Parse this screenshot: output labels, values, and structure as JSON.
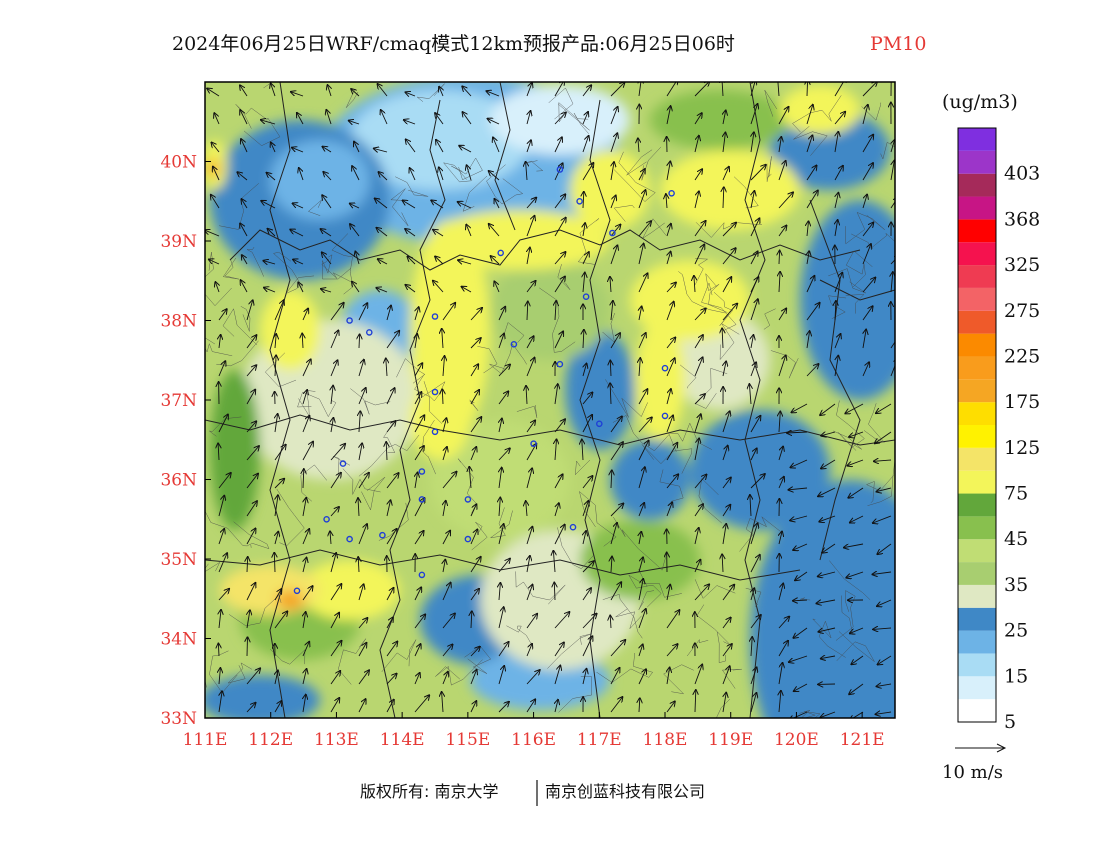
{
  "title": {
    "main": "2024年06月25日WRF/cmaq模式12km预报产品:06月25日06时",
    "pollutant": "PM10",
    "pollutant_color": "#e53935"
  },
  "map": {
    "longitude_range": [
      111,
      121.5
    ],
    "latitude_range": [
      33,
      41
    ],
    "lon_labels": [
      "111E",
      "112E",
      "113E",
      "114E",
      "115E",
      "116E",
      "117E",
      "118E",
      "119E",
      "120E",
      "121E"
    ],
    "lat_labels": [
      "33N",
      "34N",
      "35N",
      "36N",
      "37N",
      "38N",
      "39N",
      "40N"
    ],
    "label_color": "#e53935",
    "sites": [
      [
        116.4,
        39.9
      ],
      [
        117.2,
        39.1
      ],
      [
        116.7,
        39.5
      ],
      [
        115.5,
        38.85
      ],
      [
        114.5,
        38.05
      ],
      [
        115.7,
        37.7
      ],
      [
        113.2,
        38.0
      ],
      [
        113.5,
        37.85
      ],
      [
        114.5,
        37.1
      ],
      [
        114.5,
        36.6
      ],
      [
        114.3,
        36.1
      ],
      [
        113.1,
        36.2
      ],
      [
        112.85,
        35.5
      ],
      [
        113.2,
        35.25
      ],
      [
        113.7,
        35.3
      ],
      [
        114.3,
        35.75
      ],
      [
        115.0,
        35.75
      ],
      [
        115.0,
        35.25
      ],
      [
        116.0,
        36.45
      ],
      [
        116.4,
        37.45
      ],
      [
        116.8,
        38.3
      ],
      [
        118.0,
        37.4
      ],
      [
        118.0,
        36.8
      ],
      [
        117.0,
        36.7
      ],
      [
        116.6,
        35.4
      ],
      [
        114.3,
        34.8
      ],
      [
        112.4,
        34.6
      ],
      [
        118.1,
        39.6
      ]
    ]
  },
  "legend": {
    "unit": "(ug/m3)",
    "bins": [
      {
        "color": "#ffffff",
        "label": "5"
      },
      {
        "color": "#d8f0fb",
        "label": ""
      },
      {
        "color": "#a9dcf4",
        "label": "15"
      },
      {
        "color": "#6db3e6",
        "label": ""
      },
      {
        "color": "#3f88c6",
        "label": "25"
      },
      {
        "color": "#dfe8c3",
        "label": ""
      },
      {
        "color": "#a8ce70",
        "label": "35"
      },
      {
        "color": "#c0dd74",
        "label": ""
      },
      {
        "color": "#88c04e",
        "label": "45"
      },
      {
        "color": "#62a73b",
        "label": ""
      },
      {
        "color": "#f3f55a",
        "label": "75"
      },
      {
        "color": "#f4e468",
        "label": ""
      },
      {
        "color": "#fff200",
        "label": "125"
      },
      {
        "color": "#fede00",
        "label": ""
      },
      {
        "color": "#f5a623",
        "label": "175"
      },
      {
        "color": "#f99c1c",
        "label": ""
      },
      {
        "color": "#fb8a00",
        "label": "225"
      },
      {
        "color": "#ef5a2a",
        "label": ""
      },
      {
        "color": "#f36366",
        "label": "275"
      },
      {
        "color": "#ef3b52",
        "label": ""
      },
      {
        "color": "#f5124e",
        "label": "325"
      },
      {
        "color": "#ff0000",
        "label": ""
      },
      {
        "color": "#c71585",
        "label": "368"
      },
      {
        "color": "#a52a5a",
        "label": ""
      },
      {
        "color": "#9c35c9",
        "label": "403"
      },
      {
        "color": "#7f2fe0",
        "label": ""
      }
    ]
  },
  "wind_scale": {
    "label": "10 m/s",
    "value_ms": 10
  },
  "footer": {
    "left": "版权所有: 南京大学",
    "right": "南京创蓝科技有限公司"
  }
}
